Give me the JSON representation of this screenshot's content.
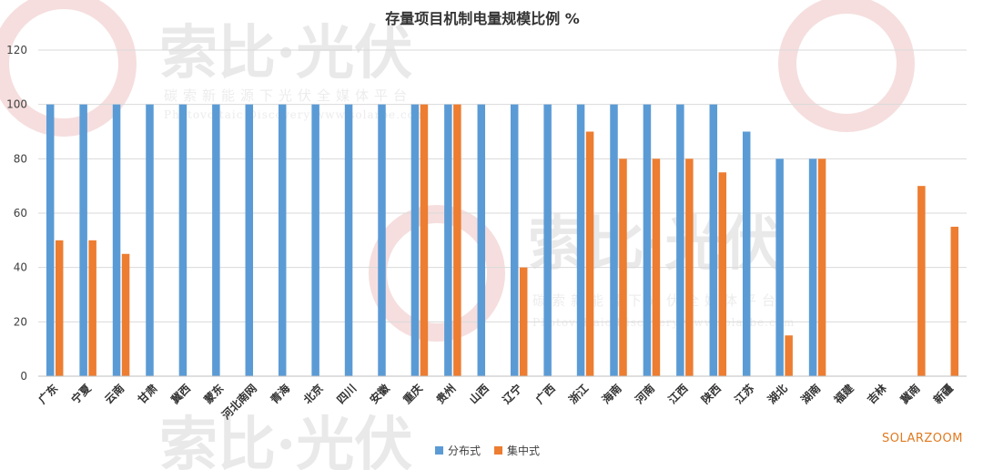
{
  "chart_data": {
    "type": "bar",
    "title": "存量项目机制电量规模比例 %",
    "categories": [
      "广东",
      "宁夏",
      "云南",
      "甘肃",
      "冀西",
      "蒙东",
      "河北南网",
      "青海",
      "北京",
      "四川",
      "安徽",
      "重庆",
      "贵州",
      "山西",
      "辽宁",
      "广西",
      "浙江",
      "海南",
      "河南",
      "江西",
      "陕西",
      "江苏",
      "湖北",
      "湖南",
      "福建",
      "吉林",
      "冀南",
      "新疆"
    ],
    "series": [
      {
        "name": "分布式",
        "color": "#5b9bd5",
        "values": [
          100,
          100,
          100,
          100,
          100,
          100,
          100,
          100,
          100,
          100,
          100,
          100,
          100,
          100,
          100,
          100,
          100,
          100,
          100,
          100,
          100,
          90,
          80,
          80,
          null,
          null,
          null,
          null
        ]
      },
      {
        "name": "集中式",
        "color": "#ed7d31",
        "values": [
          50,
          50,
          45,
          null,
          null,
          null,
          null,
          null,
          null,
          null,
          null,
          100,
          100,
          null,
          40,
          null,
          90,
          80,
          80,
          80,
          75,
          null,
          15,
          80,
          null,
          null,
          70,
          55
        ]
      }
    ],
    "ylim": [
      0,
      120
    ],
    "yticks": [
      0,
      20,
      40,
      60,
      80,
      100,
      120
    ],
    "grid": true,
    "legend": "bottom"
  },
  "watermark": {
    "brand_cn": "索比·光伏",
    "tagline": "碳索新能源下光伏全媒体平台",
    "tagline_en": "Photovoltaic Discovery  www.solarbe.com"
  },
  "brand_tag": "SOLARZOOM"
}
